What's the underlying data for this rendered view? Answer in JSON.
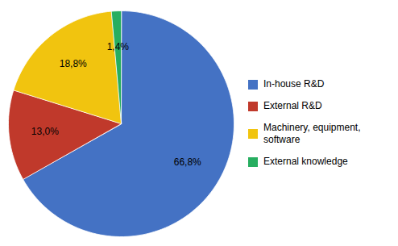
{
  "chart_data": {
    "type": "pie",
    "categories": [
      "In-house R&D",
      "External R&D",
      "Machinery, equipment,\nsoftware",
      "External knowledge"
    ],
    "values": [
      66.8,
      13.0,
      18.8,
      1.4
    ],
    "value_labels": [
      "66,8%",
      "13,0%",
      "18,8%",
      "1,4%"
    ],
    "colors": [
      "#4472C4",
      "#C0392B",
      "#F1C40F",
      "#27AE60"
    ],
    "data_labels": true,
    "legend": "right"
  }
}
